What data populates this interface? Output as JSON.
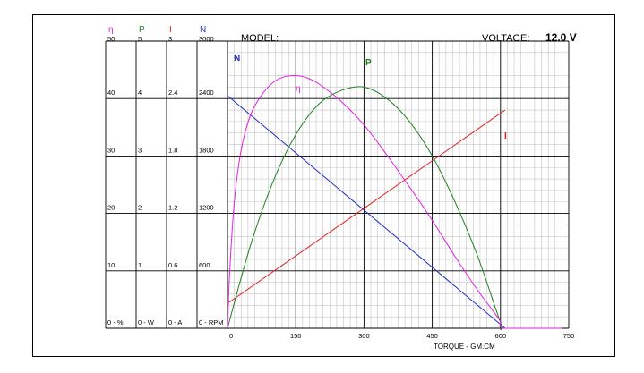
{
  "chart_data": {
    "type": "line",
    "title": "",
    "model_label": "MODEL:",
    "voltage_label": "VOLTAGE:",
    "voltage_value": "12.0 V",
    "xlabel": "TORQUE - GM.CM",
    "x_ticks": [
      "0",
      "150",
      "300",
      "450",
      "600",
      "750"
    ],
    "xlim": [
      0,
      750
    ],
    "grid": true,
    "axes": [
      {
        "key": "eta",
        "symbol": "η",
        "color": "#e020e0",
        "ticks": [
          "0 - %",
          "10",
          "20",
          "30",
          "40",
          "50"
        ],
        "range": [
          0,
          50
        ]
      },
      {
        "key": "P",
        "symbol": "P",
        "color": "#208020",
        "ticks": [
          "0 - W",
          "1",
          "2",
          "3",
          "4",
          "5"
        ],
        "range": [
          0,
          5
        ]
      },
      {
        "key": "I",
        "symbol": "I",
        "color": "#e02020",
        "ticks": [
          "0 - A",
          "0.6",
          "1.2",
          "1.8",
          "2.4",
          "3"
        ],
        "range": [
          0,
          3
        ]
      },
      {
        "key": "N",
        "symbol": "N",
        "color": "#2030c0",
        "ticks": [
          "0 - RPM",
          "600",
          "1200",
          "1800",
          "2400",
          "3000"
        ],
        "range": [
          0,
          3000
        ]
      }
    ],
    "series": [
      {
        "name": "N",
        "axis": "N",
        "color": "#2030c0",
        "x": [
          0,
          610
        ],
        "y": [
          2430,
          0
        ]
      },
      {
        "name": "I",
        "axis": "I",
        "color": "#e02020",
        "x": [
          0,
          610
        ],
        "y": [
          0.26,
          2.28
        ]
      },
      {
        "name": "P",
        "axis": "P",
        "color": "#208020",
        "x": [
          0,
          50,
          100,
          150,
          200,
          250,
          300,
          350,
          400,
          450,
          500,
          550,
          600,
          610,
          735
        ],
        "y": [
          0,
          1.43,
          2.55,
          3.37,
          3.9,
          4.14,
          4.2,
          4.0,
          3.6,
          3.0,
          2.2,
          1.25,
          0.1,
          0,
          0
        ]
      },
      {
        "name": "η",
        "axis": "eta",
        "color": "#e020e0",
        "x": [
          0,
          5,
          15,
          30,
          50,
          75,
          100,
          125,
          150,
          175,
          200,
          250,
          300,
          350,
          400,
          450,
          500,
          550,
          580,
          600,
          610,
          735
        ],
        "y": [
          0,
          10,
          22,
          31,
          37,
          40.6,
          42.8,
          43.8,
          44.0,
          43.6,
          42.6,
          39.5,
          35.4,
          30.2,
          24.6,
          18.8,
          12.5,
          6.6,
          3.4,
          1.2,
          0,
          0
        ]
      }
    ]
  }
}
